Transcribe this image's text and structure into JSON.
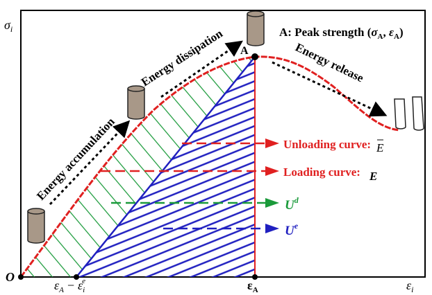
{
  "axes": {
    "y_label": {
      "symbol": "σ",
      "subscript": "i"
    },
    "x_label": {
      "symbol": "ε",
      "subscript": "i"
    },
    "origin": "O"
  },
  "x_marks": {
    "strain_difference": {
      "first": "ε",
      "first_sub": "A",
      "minus": "−",
      "second": "ε",
      "second_sub": "i",
      "second_sup": "e"
    },
    "peak_strain": {
      "symbol": "ε",
      "subscript": "A"
    }
  },
  "peak": {
    "point": "A",
    "caption": {
      "prefix": "A: Peak strength (",
      "sigma": "σ",
      "sigma_sub": "A",
      "comma": ", ",
      "epsilon": "ε",
      "epsilon_sub": "A",
      "suffix": ")"
    }
  },
  "stages": [
    "Energy accumulation",
    "Energy dissipation",
    "Energy release"
  ],
  "legend": {
    "unloading": {
      "label": "Unloading curve:",
      "symbol": "E"
    },
    "loading": {
      "label": "Loading curve:",
      "symbol": "E"
    },
    "dissipated": {
      "symbol": "U",
      "sup": "d"
    },
    "elastic": {
      "symbol": "U",
      "sup": "e"
    }
  }
}
